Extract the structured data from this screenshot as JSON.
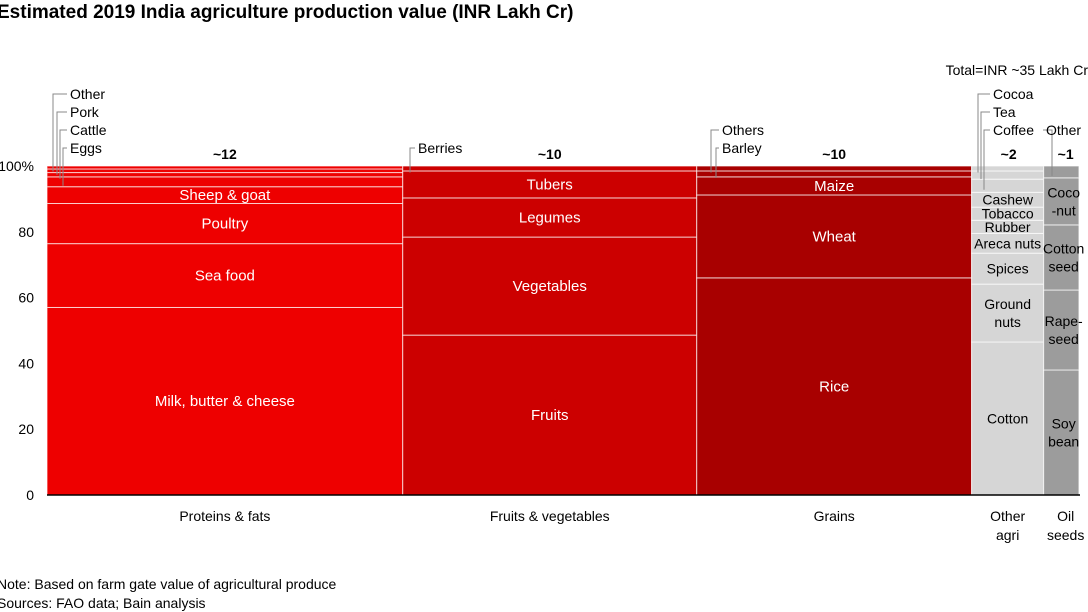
{
  "chart_data": {
    "type": "marimekko",
    "title": "Estimated 2019 India agriculture production value (INR Lakh Cr)",
    "total_label": "Total=INR ~35 Lakh Cr",
    "ylim": [
      0,
      100
    ],
    "y_ticks": [
      "0",
      "20",
      "40",
      "60",
      "80",
      "100%"
    ],
    "y_tick_values": [
      0,
      20,
      40,
      60,
      80,
      100
    ],
    "columns": [
      {
        "label": [
          "Proteins & fats"
        ],
        "total_label": "~12",
        "width": 12.1,
        "color": "#ee0000",
        "text_color": "#ffffff",
        "segments": [
          {
            "name": "Milk, butter & cheese",
            "value": 57.0
          },
          {
            "name": "Sea food",
            "value": 19.4
          },
          {
            "name": "Poultry",
            "value": 12.2
          },
          {
            "name": "Sheep & goat",
            "value": 5.1
          },
          {
            "name": "Eggs",
            "value": 3.0,
            "callout": true
          },
          {
            "name": "Cattle",
            "value": 1.3,
            "callout": true
          },
          {
            "name": "Pork",
            "value": 1.1,
            "callout": true
          },
          {
            "name": "Other",
            "value": 0.9,
            "callout": true
          }
        ]
      },
      {
        "label": [
          "Fruits & vegetables"
        ],
        "total_label": "~10",
        "width": 10.0,
        "color": "#cc0000",
        "text_color": "#ffffff",
        "segments": [
          {
            "name": "Fruits",
            "value": 48.6
          },
          {
            "name": "Vegetables",
            "value": 29.8
          },
          {
            "name": "Legumes",
            "value": 11.9
          },
          {
            "name": "Tubers",
            "value": 8.2
          },
          {
            "name": "Berries",
            "value": 1.5,
            "callout": true
          }
        ]
      },
      {
        "label": [
          "Grains"
        ],
        "total_label": "~10",
        "width": 9.35,
        "color": "#a80000",
        "text_color": "#ffffff",
        "segments": [
          {
            "name": "Rice",
            "value": 66.0
          },
          {
            "name": "Wheat",
            "value": 25.2
          },
          {
            "name": "Maize",
            "value": 5.5
          },
          {
            "name": "Barley",
            "value": 1.8,
            "callout": true
          },
          {
            "name": "Others",
            "value": 1.5,
            "callout": true
          }
        ]
      },
      {
        "label": [
          "Other",
          "agri"
        ],
        "total_label": "~2",
        "width": 2.45,
        "color": "#d6d6d6",
        "text_color": "#000000",
        "segments": [
          {
            "name": "Cotton",
            "value": 46.5
          },
          {
            "name": "Ground nuts",
            "lines": [
              "Ground",
              "nuts"
            ],
            "value": 17.6
          },
          {
            "name": "Spices",
            "value": 9.4
          },
          {
            "name": "Areca nuts",
            "value": 6.0
          },
          {
            "name": "Rubber",
            "value": 4.0
          },
          {
            "name": "Tobacco",
            "value": 4.0
          },
          {
            "name": "Cashew",
            "value": 4.5
          },
          {
            "name": "Coffee",
            "value": 4.0,
            "callout": true
          },
          {
            "name": "Tea",
            "value": 2.5,
            "callout": true
          },
          {
            "name": "Cocoa",
            "value": 1.5,
            "callout": true
          }
        ]
      },
      {
        "label": [
          "Oil",
          "seeds"
        ],
        "total_label": "~1",
        "width": 1.2,
        "color": "#9c9c9c",
        "text_color": "#000000",
        "segments": [
          {
            "name": "Soy bean",
            "lines": [
              "Soy",
              "bean"
            ],
            "value": 38.0
          },
          {
            "name": "Rape-seed",
            "lines": [
              "Rape-",
              "seed"
            ],
            "value": 24.3
          },
          {
            "name": "Cotton seed",
            "lines": [
              "Cotton",
              "seed"
            ],
            "value": 19.8
          },
          {
            "name": "Coco-nut",
            "lines": [
              "Coco",
              "-nut"
            ],
            "value": 14.3
          },
          {
            "name": "Other",
            "value": 3.6,
            "callout": true
          }
        ]
      }
    ]
  },
  "footnotes": {
    "note": "Note: Based on farm gate value of agricultural produce",
    "sources": "Sources: FAO data; Bain analysis"
  }
}
